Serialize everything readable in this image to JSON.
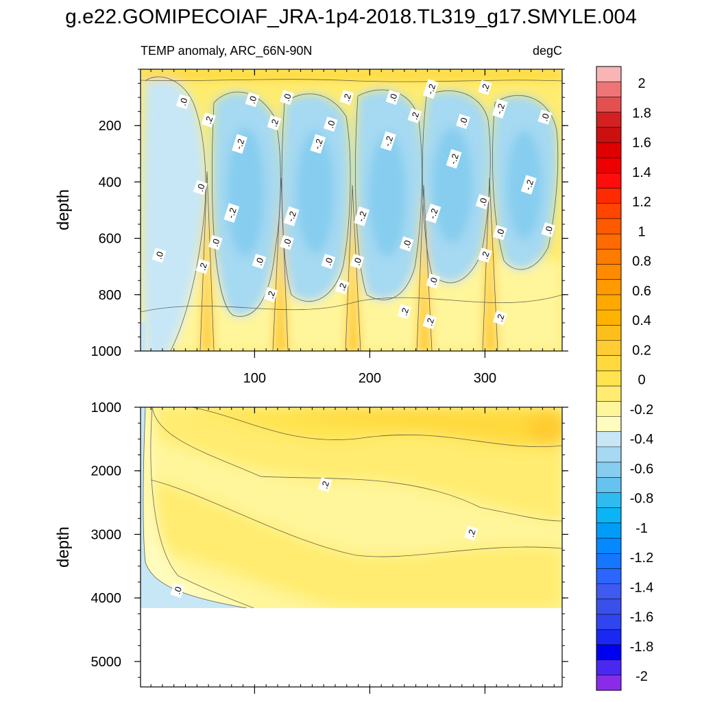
{
  "figure": {
    "title": "g.e22.GOMIPECOIAF_JRA-1p4-2018.TL319_g17.SMYLE.004"
  },
  "chart_data": [
    {
      "type": "heatmap",
      "title": "TEMP anomaly, ARC_66N-90N",
      "units": "degC",
      "xlabel": "",
      "ylabel": "depth",
      "xlim": [
        1,
        367
      ],
      "ylim": [
        1000,
        0
      ],
      "x_ticks": [
        100,
        200,
        300
      ],
      "y_ticks": [
        200,
        400,
        600,
        800,
        1000
      ],
      "contour_labels": [
        {
          "text": ".0",
          "x": 38,
          "y": 115
        },
        {
          "text": ".0",
          "x": 98,
          "y": 108
        },
        {
          "text": ".0",
          "x": 128,
          "y": 100
        },
        {
          "text": ".2",
          "x": 180,
          "y": 100
        },
        {
          "text": ".0",
          "x": 220,
          "y": 100
        },
        {
          "text": "-.2",
          "x": 253,
          "y": 70
        },
        {
          "text": ".2",
          "x": 300,
          "y": 65
        },
        {
          "text": "-.2",
          "x": 313,
          "y": 140
        },
        {
          "text": ".2",
          "x": 60,
          "y": 180
        },
        {
          "text": ".2",
          "x": 117,
          "y": 190
        },
        {
          "text": ".0",
          "x": 166,
          "y": 195
        },
        {
          "text": ".2",
          "x": 239,
          "y": 165
        },
        {
          "text": ".0",
          "x": 281,
          "y": 185
        },
        {
          "text": ".0",
          "x": 352,
          "y": 170
        },
        {
          "text": "-.2",
          "x": 87,
          "y": 265
        },
        {
          "text": "-.2",
          "x": 155,
          "y": 265
        },
        {
          "text": "-.2",
          "x": 216,
          "y": 255
        },
        {
          "text": "-.2",
          "x": 273,
          "y": 318
        },
        {
          "text": ".0",
          "x": 53,
          "y": 420
        },
        {
          "text": "-.2",
          "x": 338,
          "y": 410
        },
        {
          "text": ".0",
          "x": 298,
          "y": 470
        },
        {
          "text": "-.2",
          "x": 80,
          "y": 510
        },
        {
          "text": "-.2",
          "x": 132,
          "y": 522
        },
        {
          "text": "-.2",
          "x": 193,
          "y": 522
        },
        {
          "text": "-.2",
          "x": 255,
          "y": 512
        },
        {
          "text": ".0",
          "x": 355,
          "y": 570
        },
        {
          "text": ".0",
          "x": 313,
          "y": 580
        },
        {
          "text": ".0",
          "x": 66,
          "y": 615
        },
        {
          "text": ".0",
          "x": 128,
          "y": 615
        },
        {
          "text": ".0",
          "x": 232,
          "y": 620
        },
        {
          "text": ".0",
          "x": 17,
          "y": 660
        },
        {
          "text": ".2",
          "x": 300,
          "y": 660
        },
        {
          "text": ".2",
          "x": 55,
          "y": 700
        },
        {
          "text": ".0",
          "x": 104,
          "y": 682
        },
        {
          "text": ".0",
          "x": 164,
          "y": 682
        },
        {
          "text": ".0",
          "x": 189,
          "y": 682
        },
        {
          "text": ".0",
          "x": 255,
          "y": 752
        },
        {
          "text": ".2",
          "x": 176,
          "y": 772
        },
        {
          "text": ".2",
          "x": 114,
          "y": 800
        },
        {
          "text": ".2",
          "x": 230,
          "y": 860
        },
        {
          "text": ".2",
          "x": 313,
          "y": 882
        },
        {
          "text": ".2",
          "x": 252,
          "y": 896
        }
      ]
    },
    {
      "type": "heatmap",
      "title": "",
      "xlabel": "",
      "ylabel": "depth",
      "xlim": [
        1,
        367
      ],
      "ylim": [
        5400,
        1000
      ],
      "x_ticks": [
        100,
        200,
        300
      ],
      "y_ticks": [
        1000,
        2000,
        3000,
        4000,
        5000
      ],
      "data_bottom_depth": 4120,
      "contour_labels": [
        {
          "text": ".2",
          "x": 161,
          "y": 2220
        },
        {
          "text": ".2",
          "x": 288,
          "y": 2980
        },
        {
          "text": ".0",
          "x": 33,
          "y": 3880
        }
      ]
    }
  ],
  "colorbar": {
    "levels": [
      "2",
      "1.8",
      "1.6",
      "1.4",
      "1.2",
      "1",
      "0.8",
      "0.6",
      "0.4",
      "0.2",
      "0",
      "-0.2",
      "-0.4",
      "-0.6",
      "-0.8",
      "-1",
      "-1.2",
      "-1.4",
      "-1.6",
      "-1.8",
      "-2"
    ],
    "colors": [
      "#f7b5b5",
      "#ee7575",
      "#e25050",
      "#d42020",
      "#cc1010",
      "#e00000",
      "#ee0000",
      "#ff0d0d",
      "#ff2b00",
      "#ff4500",
      "#ff5a00",
      "#ff6b00",
      "#ff7b00",
      "#ff8a00",
      "#ff9a00",
      "#ffa800",
      "#ffb300",
      "#ffbf1a",
      "#ffcc33",
      "#ffd93d",
      "#ffe34f",
      "#ffec70",
      "#fff59a",
      "#fffcbf",
      "#c8e7f6",
      "#a6d9f2",
      "#86cdef",
      "#66c2ee",
      "#2ebbf0",
      "#0bb4f5",
      "#009df8",
      "#0689ff",
      "#1576ff",
      "#2b66ff",
      "#3f5af0",
      "#3a50ea",
      "#2f45f0",
      "#1a28f2",
      "#0000f0",
      "#4a28f2",
      "#8a2be8"
    ]
  }
}
